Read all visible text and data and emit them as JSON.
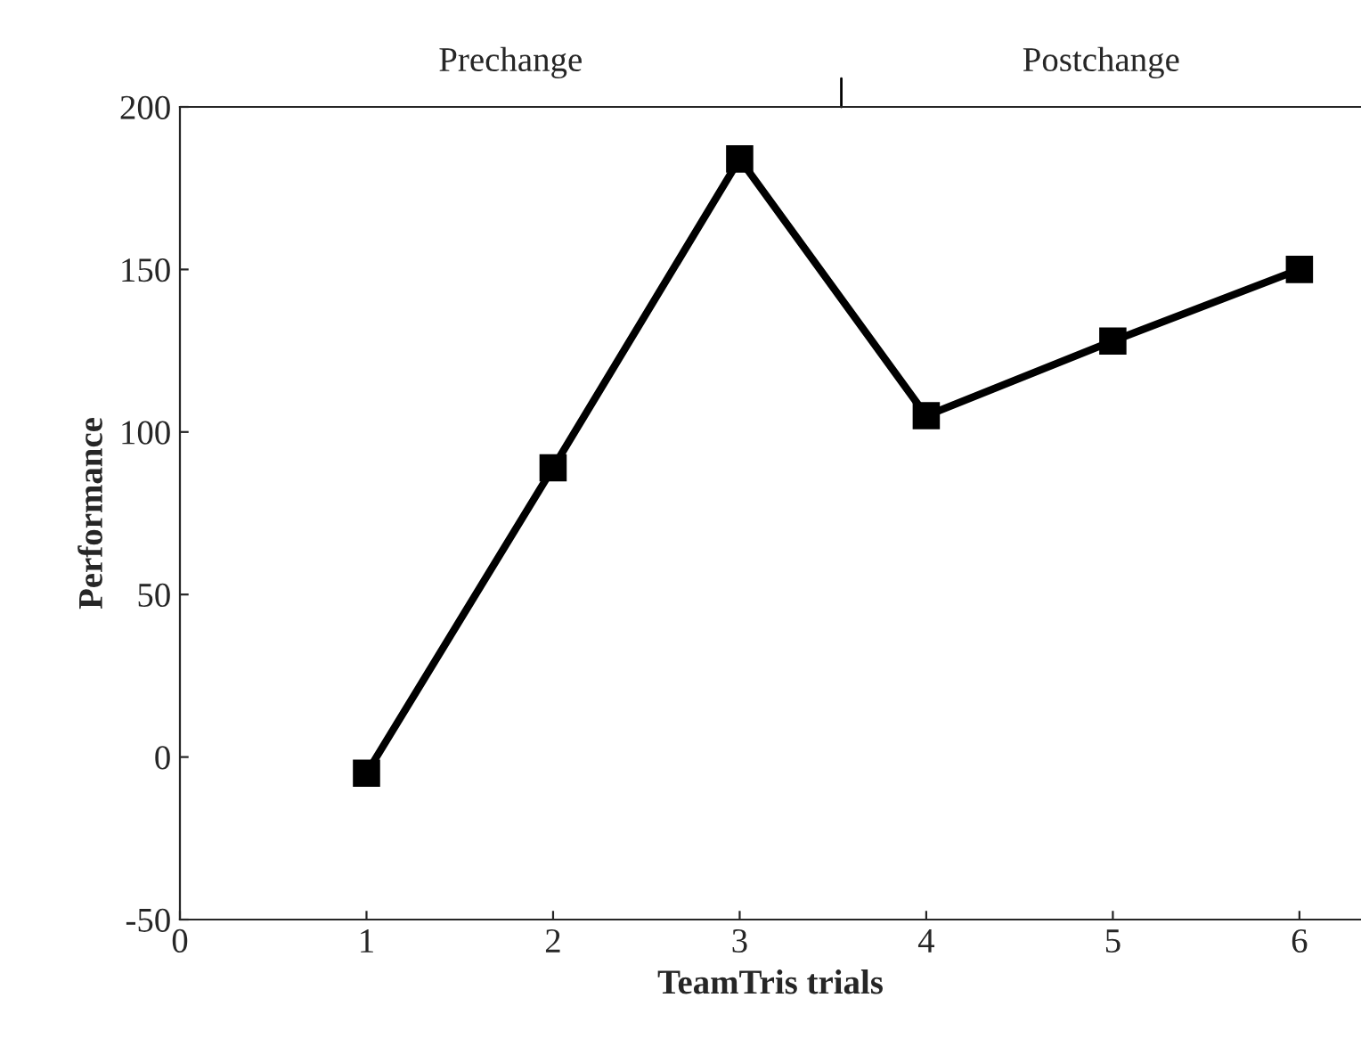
{
  "chart_data": {
    "type": "line",
    "xlabel": "TeamTris trials",
    "ylabel": "Performance",
    "x": [
      1,
      2,
      3,
      4,
      5,
      6
    ],
    "series": [
      {
        "color": "#000000",
        "values": [
          -5,
          89,
          184,
          105,
          128,
          150
        ]
      }
    ],
    "xlim": [
      0,
      6.33
    ],
    "xticks": [
      0,
      1,
      2,
      3,
      4,
      5,
      6
    ],
    "ylim": [
      -50,
      200
    ],
    "yticks": [
      -50,
      0,
      50,
      100,
      150,
      200
    ],
    "annotations": [
      "Prechange",
      "Postchange"
    ],
    "marker": "square",
    "line_style": "solid",
    "grid": false,
    "legend": false
  }
}
